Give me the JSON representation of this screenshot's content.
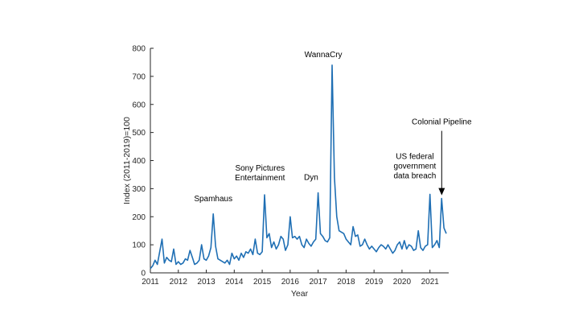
{
  "chart_data": {
    "type": "line",
    "title": "",
    "xlabel": "Year",
    "ylabel": "Index (2011-2019)=100",
    "xlim": [
      2011,
      2021.67
    ],
    "ylim": [
      0,
      800
    ],
    "x_ticks": [
      2011,
      2012,
      2013,
      2014,
      2015,
      2016,
      2017,
      2018,
      2019,
      2020,
      2021
    ],
    "x_tick_labels": [
      "2011",
      "2012",
      "2013",
      "2014",
      "2015",
      "2016",
      "2017",
      "2018",
      "2019",
      "2020",
      "2021"
    ],
    "y_ticks": [
      0,
      100,
      200,
      300,
      400,
      500,
      600,
      700,
      800
    ],
    "y_tick_labels": [
      "0",
      "100",
      "200",
      "300",
      "400",
      "500",
      "600",
      "700",
      "800"
    ],
    "grid": false,
    "series_color": "#1f6fb4",
    "series": [
      {
        "name": "",
        "x": [
          2011.0,
          2011.083,
          2011.167,
          2011.25,
          2011.333,
          2011.417,
          2011.5,
          2011.583,
          2011.667,
          2011.75,
          2011.833,
          2011.917,
          2012.0,
          2012.083,
          2012.167,
          2012.25,
          2012.333,
          2012.417,
          2012.5,
          2012.583,
          2012.667,
          2012.75,
          2012.833,
          2012.917,
          2013.0,
          2013.083,
          2013.167,
          2013.25,
          2013.333,
          2013.417,
          2013.5,
          2013.583,
          2013.667,
          2013.75,
          2013.833,
          2013.917,
          2014.0,
          2014.083,
          2014.167,
          2014.25,
          2014.333,
          2014.417,
          2014.5,
          2014.583,
          2014.667,
          2014.75,
          2014.833,
          2014.917,
          2015.0,
          2015.083,
          2015.167,
          2015.25,
          2015.333,
          2015.417,
          2015.5,
          2015.583,
          2015.667,
          2015.75,
          2015.833,
          2015.917,
          2016.0,
          2016.083,
          2016.167,
          2016.25,
          2016.333,
          2016.417,
          2016.5,
          2016.583,
          2016.667,
          2016.75,
          2016.833,
          2016.917,
          2017.0,
          2017.083,
          2017.167,
          2017.25,
          2017.333,
          2017.417,
          2017.5,
          2017.583,
          2017.667,
          2017.75,
          2017.833,
          2017.917,
          2018.0,
          2018.083,
          2018.167,
          2018.25,
          2018.333,
          2018.417,
          2018.5,
          2018.583,
          2018.667,
          2018.75,
          2018.833,
          2018.917,
          2019.0,
          2019.083,
          2019.167,
          2019.25,
          2019.333,
          2019.417,
          2019.5,
          2019.583,
          2019.667,
          2019.75,
          2019.833,
          2019.917,
          2020.0,
          2020.083,
          2020.167,
          2020.25,
          2020.333,
          2020.417,
          2020.5,
          2020.583,
          2020.667,
          2020.75,
          2020.833,
          2020.917,
          2021.0,
          2021.083,
          2021.167,
          2021.25,
          2021.333,
          2021.417,
          2021.5,
          2021.583
        ],
        "y": [
          15,
          25,
          45,
          30,
          75,
          120,
          35,
          55,
          45,
          40,
          85,
          30,
          40,
          30,
          35,
          50,
          45,
          80,
          55,
          30,
          35,
          45,
          100,
          50,
          45,
          60,
          90,
          210,
          95,
          50,
          45,
          40,
          35,
          45,
          30,
          70,
          50,
          60,
          45,
          70,
          55,
          75,
          70,
          85,
          65,
          120,
          70,
          65,
          75,
          278,
          125,
          140,
          90,
          110,
          85,
          100,
          130,
          120,
          80,
          100,
          200,
          125,
          130,
          120,
          130,
          100,
          90,
          120,
          105,
          95,
          110,
          120,
          285,
          140,
          130,
          115,
          110,
          125,
          740,
          340,
          200,
          150,
          145,
          140,
          120,
          110,
          100,
          165,
          130,
          135,
          95,
          100,
          120,
          100,
          85,
          95,
          85,
          75,
          90,
          100,
          95,
          85,
          100,
          85,
          70,
          80,
          100,
          110,
          85,
          115,
          85,
          100,
          95,
          80,
          85,
          150,
          90,
          80,
          95,
          100,
          280,
          90,
          100,
          115,
          90,
          265,
          160,
          140
        ]
      }
    ],
    "annotations": [
      {
        "lines": [
          "Spamhaus"
        ],
        "x": 2013.25,
        "y": 210
      },
      {
        "lines": [
          "Sony Pictures",
          "Entertainment"
        ],
        "x": 2014.92,
        "y": 278
      },
      {
        "lines": [
          "Dyn"
        ],
        "x": 2016.75,
        "y": 285
      },
      {
        "lines": [
          "WannaCry"
        ],
        "x": 2017.33,
        "y": 740
      },
      {
        "lines": [
          "US federal",
          "government",
          "data breach"
        ],
        "x": 2020.92,
        "y": 280
      },
      {
        "lines": [
          "Colonial Pipeline"
        ],
        "x": 2021.42,
        "y": 265
      }
    ]
  }
}
